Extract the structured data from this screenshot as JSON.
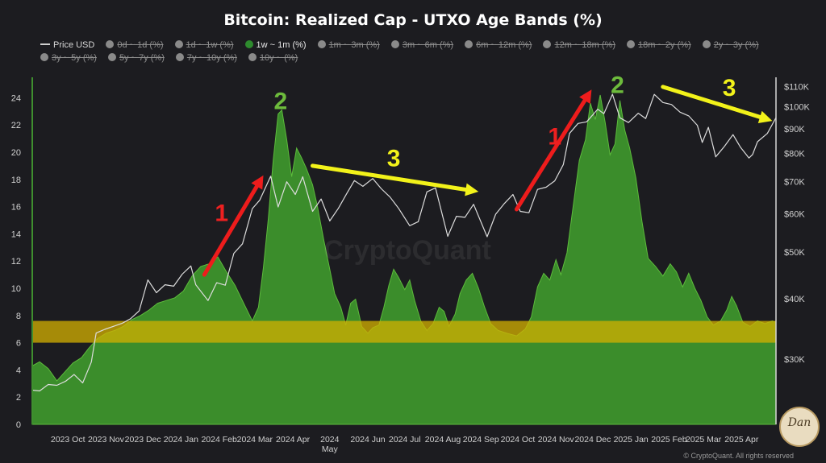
{
  "title": "Bitcoin: Realized Cap - UTXO Age Bands (%)",
  "legend": [
    {
      "label": "Price USD",
      "state": "line"
    },
    {
      "label": "0d ~ 1d (%)",
      "state": "off"
    },
    {
      "label": "1d ~ 1w (%)",
      "state": "off"
    },
    {
      "label": "1w ~ 1m (%)",
      "state": "on",
      "color": "#2e8b2e"
    },
    {
      "label": "1m ~ 3m (%)",
      "state": "off"
    },
    {
      "label": "3m ~ 6m (%)",
      "state": "off"
    },
    {
      "label": "6m ~ 12m (%)",
      "state": "off"
    },
    {
      "label": "12m ~ 18m (%)",
      "state": "off"
    },
    {
      "label": "18m ~ 2y (%)",
      "state": "off"
    },
    {
      "label": "2y ~ 3y (%)",
      "state": "off"
    },
    {
      "label": "3y ~ 5y (%)",
      "state": "off"
    },
    {
      "label": "5y ~ 7y (%)",
      "state": "off"
    },
    {
      "label": "7y ~ 10y (%)",
      "state": "off"
    },
    {
      "label": "10y ~ (%)",
      "state": "off"
    }
  ],
  "footer": "© CryptoQuant. All rights reserved",
  "watermark": "CryptoQuant",
  "badge": "Dan",
  "colors": {
    "background": "#1c1c20",
    "area": "#3f9a2c",
    "price": "#dcdcdc",
    "band": "#d4b000",
    "arrow_red": "#ee1c1c",
    "arrow_yellow": "#f2f21a",
    "label_yellow": "#f2f21a",
    "label_red": "#ee2020",
    "label_green": "#6dbb3c"
  },
  "chart_data": {
    "type": "area",
    "x_ticks": [
      "2023 Oct",
      "2023 Nov",
      "2023 Dec",
      "2024 Jan",
      "2024 Feb",
      "2024 Mar",
      "2024 Apr",
      "2024 May",
      "2024 Jun",
      "2024 Jul",
      "2024 Aug",
      "2024 Sep",
      "2024 Oct",
      "2024 Nov",
      "2024 Dec",
      "2025 Jan",
      "2025 Feb",
      "2025 Mar",
      "2025 Apr"
    ],
    "x_tick_dates": [
      "2023-10-01",
      "2023-11-01",
      "2023-12-01",
      "2024-01-01",
      "2024-02-01",
      "2024-03-01",
      "2024-04-01",
      "2024-05-01",
      "2024-06-01",
      "2024-07-01",
      "2024-08-01",
      "2024-09-01",
      "2024-10-01",
      "2024-11-01",
      "2024-12-01",
      "2025-01-01",
      "2025-02-01",
      "2025-03-01",
      "2025-04-01"
    ],
    "x_range": [
      "2023-09-02",
      "2025-04-29"
    ],
    "y_left": {
      "ticks": [
        0,
        2,
        4,
        6,
        8,
        10,
        12,
        14,
        16,
        18,
        20,
        22,
        24
      ],
      "range": [
        0,
        25.5
      ],
      "unit": "%"
    },
    "y_right": {
      "scale": "log",
      "ticks": [
        30000,
        40000,
        50000,
        60000,
        70000,
        80000,
        90000,
        100000,
        110000
      ],
      "tick_labels": [
        "$30K",
        "$40K",
        "$50K",
        "$60K",
        "$70K",
        "$80K",
        "$90K",
        "$100K",
        "$110K"
      ],
      "range": [
        22000,
        115000
      ]
    },
    "highlight_band": {
      "from": 6.0,
      "to": 7.6
    },
    "series": [
      {
        "name": "1w ~ 1m (%)",
        "axis": "left",
        "kind": "area",
        "points": [
          [
            "2023-09-02",
            4.3
          ],
          [
            "2023-09-08",
            4.6
          ],
          [
            "2023-09-15",
            4.1
          ],
          [
            "2023-09-22",
            3.2
          ],
          [
            "2023-09-28",
            3.8
          ],
          [
            "2023-10-05",
            4.5
          ],
          [
            "2023-10-12",
            4.9
          ],
          [
            "2023-10-18",
            5.6
          ],
          [
            "2023-10-25",
            6.3
          ],
          [
            "2023-11-01",
            6.7
          ],
          [
            "2023-11-08",
            6.9
          ],
          [
            "2023-11-15",
            7.2
          ],
          [
            "2023-11-22",
            7.7
          ],
          [
            "2023-11-29",
            8.0
          ],
          [
            "2023-12-06",
            8.4
          ],
          [
            "2023-12-13",
            8.9
          ],
          [
            "2023-12-20",
            9.1
          ],
          [
            "2023-12-27",
            9.3
          ],
          [
            "2024-01-03",
            9.8
          ],
          [
            "2024-01-10",
            10.9
          ],
          [
            "2024-01-17",
            11.6
          ],
          [
            "2024-01-24",
            11.8
          ],
          [
            "2024-01-31",
            12.3
          ],
          [
            "2024-02-07",
            11.2
          ],
          [
            "2024-02-14",
            10.2
          ],
          [
            "2024-02-21",
            8.9
          ],
          [
            "2024-02-28",
            7.6
          ],
          [
            "2024-03-04",
            8.6
          ],
          [
            "2024-03-08",
            11.5
          ],
          [
            "2024-03-12",
            15.1
          ],
          [
            "2024-03-16",
            19.4
          ],
          [
            "2024-03-20",
            22.8
          ],
          [
            "2024-03-23",
            23.1
          ],
          [
            "2024-03-27",
            20.9
          ],
          [
            "2024-03-31",
            18.2
          ],
          [
            "2024-04-04",
            20.3
          ],
          [
            "2024-04-08",
            19.6
          ],
          [
            "2024-04-12",
            18.8
          ],
          [
            "2024-04-17",
            17.6
          ],
          [
            "2024-04-21",
            16.0
          ],
          [
            "2024-04-26",
            13.6
          ],
          [
            "2024-05-01",
            11.4
          ],
          [
            "2024-05-05",
            9.6
          ],
          [
            "2024-05-10",
            8.6
          ],
          [
            "2024-05-14",
            7.3
          ],
          [
            "2024-05-18",
            8.9
          ],
          [
            "2024-05-22",
            9.2
          ],
          [
            "2024-05-27",
            7.2
          ],
          [
            "2024-06-01",
            6.7
          ],
          [
            "2024-06-05",
            7.1
          ],
          [
            "2024-06-10",
            7.3
          ],
          [
            "2024-06-14",
            8.6
          ],
          [
            "2024-06-18",
            10.2
          ],
          [
            "2024-06-22",
            11.4
          ],
          [
            "2024-06-26",
            10.8
          ],
          [
            "2024-07-01",
            9.9
          ],
          [
            "2024-07-05",
            10.6
          ],
          [
            "2024-07-09",
            9.1
          ],
          [
            "2024-07-14",
            7.6
          ],
          [
            "2024-07-19",
            6.9
          ],
          [
            "2024-07-24",
            7.4
          ],
          [
            "2024-07-29",
            8.6
          ],
          [
            "2024-08-02",
            8.3
          ],
          [
            "2024-08-06",
            7.2
          ],
          [
            "2024-08-11",
            8.1
          ],
          [
            "2024-08-15",
            9.6
          ],
          [
            "2024-08-20",
            10.6
          ],
          [
            "2024-08-25",
            11.1
          ],
          [
            "2024-08-30",
            10.0
          ],
          [
            "2024-09-04",
            8.6
          ],
          [
            "2024-09-09",
            7.4
          ],
          [
            "2024-09-15",
            6.9
          ],
          [
            "2024-09-22",
            6.7
          ],
          [
            "2024-09-30",
            6.5
          ],
          [
            "2024-10-07",
            7.0
          ],
          [
            "2024-10-12",
            7.9
          ],
          [
            "2024-10-17",
            10.1
          ],
          [
            "2024-10-22",
            11.1
          ],
          [
            "2024-10-27",
            10.6
          ],
          [
            "2024-11-01",
            12.1
          ],
          [
            "2024-11-05",
            11.0
          ],
          [
            "2024-11-10",
            12.6
          ],
          [
            "2024-11-15",
            16.0
          ],
          [
            "2024-11-20",
            19.4
          ],
          [
            "2024-11-25",
            20.9
          ],
          [
            "2024-11-29",
            23.6
          ],
          [
            "2024-12-03",
            22.4
          ],
          [
            "2024-12-07",
            24.2
          ],
          [
            "2024-12-11",
            22.2
          ],
          [
            "2024-12-15",
            19.8
          ],
          [
            "2024-12-19",
            20.6
          ],
          [
            "2024-12-23",
            23.8
          ],
          [
            "2024-12-27",
            21.6
          ],
          [
            "2024-12-31",
            20.3
          ],
          [
            "2025-01-05",
            18.1
          ],
          [
            "2025-01-10",
            14.9
          ],
          [
            "2025-01-15",
            12.2
          ],
          [
            "2025-01-21",
            11.6
          ],
          [
            "2025-01-27",
            10.9
          ],
          [
            "2025-02-02",
            11.8
          ],
          [
            "2025-02-07",
            11.2
          ],
          [
            "2025-02-12",
            10.1
          ],
          [
            "2025-02-17",
            11.1
          ],
          [
            "2025-02-22",
            10.0
          ],
          [
            "2025-02-27",
            9.1
          ],
          [
            "2025-03-04",
            7.9
          ],
          [
            "2025-03-09",
            7.3
          ],
          [
            "2025-03-15",
            7.6
          ],
          [
            "2025-03-20",
            8.4
          ],
          [
            "2025-03-24",
            9.4
          ],
          [
            "2025-03-28",
            8.7
          ],
          [
            "2025-04-02",
            7.5
          ],
          [
            "2025-04-08",
            7.2
          ],
          [
            "2025-04-14",
            7.6
          ],
          [
            "2025-04-20",
            7.4
          ],
          [
            "2025-04-26",
            7.6
          ],
          [
            "2025-04-29",
            7.5
          ]
        ]
      },
      {
        "name": "Price USD",
        "axis": "right",
        "kind": "line",
        "points": [
          [
            "2023-09-02",
            25900
          ],
          [
            "2023-09-08",
            25800
          ],
          [
            "2023-09-15",
            26600
          ],
          [
            "2023-09-22",
            26500
          ],
          [
            "2023-09-29",
            27000
          ],
          [
            "2023-10-06",
            27900
          ],
          [
            "2023-10-13",
            26800
          ],
          [
            "2023-10-20",
            29600
          ],
          [
            "2023-10-24",
            34000
          ],
          [
            "2023-10-31",
            34600
          ],
          [
            "2023-11-07",
            35100
          ],
          [
            "2023-11-14",
            35600
          ],
          [
            "2023-11-21",
            36400
          ],
          [
            "2023-11-28",
            37800
          ],
          [
            "2023-12-05",
            43800
          ],
          [
            "2023-12-12",
            41200
          ],
          [
            "2023-12-19",
            42800
          ],
          [
            "2023-12-26",
            42500
          ],
          [
            "2024-01-02",
            45000
          ],
          [
            "2024-01-09",
            46800
          ],
          [
            "2024-01-13",
            42800
          ],
          [
            "2024-01-23",
            39700
          ],
          [
            "2024-01-30",
            43200
          ],
          [
            "2024-02-06",
            42700
          ],
          [
            "2024-02-13",
            49700
          ],
          [
            "2024-02-20",
            52000
          ],
          [
            "2024-02-28",
            61500
          ],
          [
            "2024-03-05",
            64000
          ],
          [
            "2024-03-14",
            71800
          ],
          [
            "2024-03-20",
            62000
          ],
          [
            "2024-03-27",
            69900
          ],
          [
            "2024-04-03",
            65800
          ],
          [
            "2024-04-09",
            71600
          ],
          [
            "2024-04-17",
            60700
          ],
          [
            "2024-04-24",
            64400
          ],
          [
            "2024-05-01",
            58000
          ],
          [
            "2024-05-08",
            61600
          ],
          [
            "2024-05-15",
            66200
          ],
          [
            "2024-05-21",
            70300
          ],
          [
            "2024-05-28",
            68400
          ],
          [
            "2024-06-05",
            71000
          ],
          [
            "2024-06-12",
            67600
          ],
          [
            "2024-06-19",
            65000
          ],
          [
            "2024-06-26",
            61600
          ],
          [
            "2024-07-05",
            56700
          ],
          [
            "2024-07-12",
            57800
          ],
          [
            "2024-07-19",
            66600
          ],
          [
            "2024-07-26",
            67900
          ],
          [
            "2024-08-05",
            53900
          ],
          [
            "2024-08-12",
            59300
          ],
          [
            "2024-08-19",
            59000
          ],
          [
            "2024-08-26",
            62800
          ],
          [
            "2024-09-06",
            53800
          ],
          [
            "2024-09-13",
            59900
          ],
          [
            "2024-09-20",
            63000
          ],
          [
            "2024-09-27",
            65800
          ],
          [
            "2024-10-03",
            60700
          ],
          [
            "2024-10-10",
            60300
          ],
          [
            "2024-10-17",
            67400
          ],
          [
            "2024-10-24",
            68100
          ],
          [
            "2024-10-31",
            70200
          ],
          [
            "2024-11-07",
            75900
          ],
          [
            "2024-11-12",
            88000
          ],
          [
            "2024-11-19",
            92300
          ],
          [
            "2024-11-26",
            93000
          ],
          [
            "2024-12-05",
            98800
          ],
          [
            "2024-12-10",
            96700
          ],
          [
            "2024-12-17",
            106100
          ],
          [
            "2024-12-23",
            94800
          ],
          [
            "2024-12-30",
            92700
          ],
          [
            "2025-01-07",
            96900
          ],
          [
            "2025-01-13",
            94500
          ],
          [
            "2025-01-20",
            106000
          ],
          [
            "2025-01-27",
            102000
          ],
          [
            "2025-02-03",
            101000
          ],
          [
            "2025-02-10",
            97400
          ],
          [
            "2025-02-17",
            95700
          ],
          [
            "2025-02-24",
            91500
          ],
          [
            "2025-02-28",
            84300
          ],
          [
            "2025-03-05",
            90600
          ],
          [
            "2025-03-11",
            78700
          ],
          [
            "2025-03-18",
            82700
          ],
          [
            "2025-03-25",
            87500
          ],
          [
            "2025-03-31",
            82500
          ],
          [
            "2025-04-07",
            78300
          ],
          [
            "2025-04-10",
            79600
          ],
          [
            "2025-04-14",
            84600
          ],
          [
            "2025-04-22",
            88000
          ],
          [
            "2025-04-29",
            94900
          ]
        ]
      }
    ],
    "annotations": [
      {
        "text": "1",
        "color": "red",
        "at": [
          "2024-02-03",
          15.6
        ]
      },
      {
        "text": "2",
        "color": "green",
        "at": [
          "2024-03-22",
          23.8
        ]
      },
      {
        "text": "3",
        "color": "yellow",
        "at": [
          "2024-06-22",
          19.6
        ]
      },
      {
        "text": "1",
        "color": "red",
        "at": [
          "2024-10-31",
          21.2
        ]
      },
      {
        "text": "2",
        "color": "green",
        "at": [
          "2024-12-21",
          25.0
        ]
      },
      {
        "text": "3",
        "color": "yellow",
        "at": [
          "2025-03-22",
          24.8
        ]
      }
    ],
    "arrows": [
      {
        "color": "red",
        "from": [
          "2024-01-20",
          11.0
        ],
        "to": [
          "2024-03-08",
          18.3
        ]
      },
      {
        "color": "yellow",
        "from": [
          "2024-04-17",
          19.0
        ],
        "to": [
          "2024-08-30",
          17.1
        ]
      },
      {
        "color": "red",
        "from": [
          "2024-09-30",
          15.8
        ],
        "to": [
          "2024-11-30",
          24.6
        ]
      },
      {
        "color": "yellow",
        "from": [
          "2025-01-27",
          24.8
        ],
        "to": [
          "2025-04-26",
          22.3
        ]
      }
    ]
  }
}
